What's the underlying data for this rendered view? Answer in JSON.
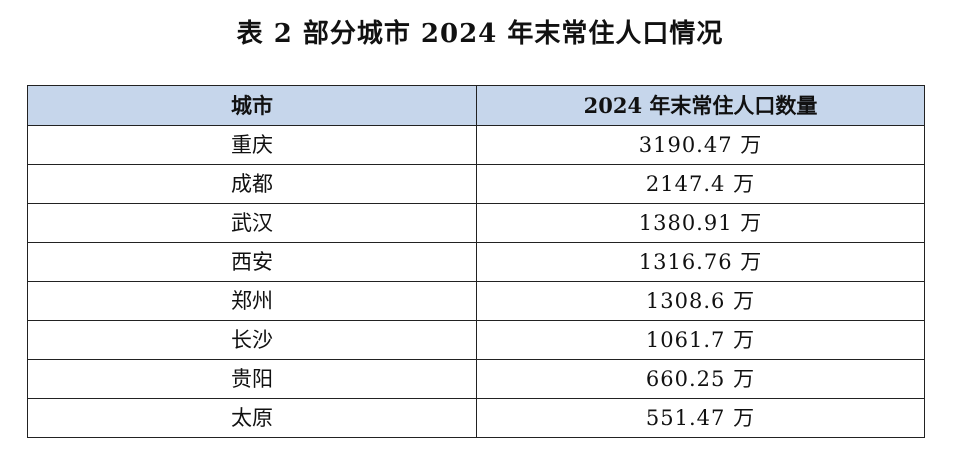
{
  "title": "表 2  部分城市 2024 年末常住人口情况",
  "table": {
    "headers": [
      "城市",
      "2024 年末常住人口数量"
    ],
    "rows": [
      {
        "city": "重庆",
        "population": "3190.47 万"
      },
      {
        "city": "成都",
        "population": "2147.4 万"
      },
      {
        "city": "武汉",
        "population": "1380.91 万"
      },
      {
        "city": "西安",
        "population": "1316.76 万"
      },
      {
        "city": "郑州",
        "population": "1308.6 万"
      },
      {
        "city": "长沙",
        "population": "1061.7 万"
      },
      {
        "city": "贵阳",
        "population": "660.25 万"
      },
      {
        "city": "太原",
        "population": "551.47 万"
      }
    ]
  },
  "colors": {
    "header_background": "#c6d6eb",
    "border": "#222222"
  }
}
